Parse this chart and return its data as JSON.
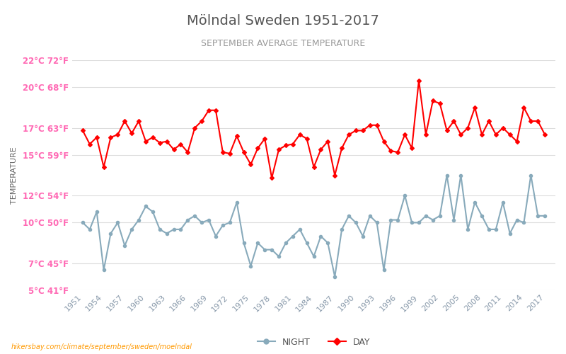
{
  "title": "Mölndal Sweden 1951-2017",
  "subtitle": "SEPTEMBER AVERAGE TEMPERATURE",
  "ylabel": "TEMPERATURE",
  "background_color": "#ffffff",
  "plot_bg_color": "#ffffff",
  "grid_color": "#dddddd",
  "title_color": "#555555",
  "subtitle_color": "#888888",
  "ylabel_color": "#666666",
  "tick_color_left": "#ff69b4",
  "tick_color_right": "#66cc66",
  "years": [
    1951,
    1952,
    1953,
    1954,
    1955,
    1956,
    1957,
    1958,
    1959,
    1960,
    1961,
    1962,
    1963,
    1964,
    1965,
    1966,
    1967,
    1968,
    1969,
    1970,
    1971,
    1972,
    1973,
    1974,
    1975,
    1976,
    1977,
    1978,
    1979,
    1980,
    1981,
    1982,
    1983,
    1984,
    1985,
    1986,
    1987,
    1988,
    1989,
    1990,
    1991,
    1992,
    1993,
    1994,
    1995,
    1996,
    1997,
    1998,
    1999,
    2000,
    2001,
    2002,
    2003,
    2004,
    2005,
    2006,
    2007,
    2008,
    2009,
    2010,
    2011,
    2012,
    2013,
    2014,
    2015,
    2016,
    2017
  ],
  "day_data": [
    16.8,
    15.8,
    16.3,
    14.1,
    16.3,
    16.5,
    17.5,
    16.6,
    17.5,
    16.0,
    16.3,
    15.9,
    16.0,
    15.4,
    15.8,
    15.2,
    17.0,
    17.5,
    18.3,
    18.3,
    15.2,
    15.1,
    16.4,
    15.2,
    14.3,
    15.5,
    16.2,
    13.3,
    15.4,
    15.7,
    15.8,
    16.5,
    16.2,
    14.1,
    15.4,
    16.0,
    13.5,
    15.5,
    16.5,
    16.8,
    16.8,
    17.2,
    17.2,
    16.0,
    15.3,
    15.2,
    16.5,
    15.5,
    20.5,
    16.5,
    19.0,
    18.8,
    16.8,
    17.5,
    16.5,
    17.0,
    18.5,
    16.5,
    17.5,
    16.5,
    17.0,
    16.5,
    16.0,
    18.5,
    17.5,
    17.5,
    16.5
  ],
  "night_data": [
    10.0,
    9.5,
    10.8,
    6.5,
    9.2,
    10.0,
    8.3,
    9.5,
    10.2,
    11.2,
    10.8,
    9.5,
    9.2,
    9.5,
    9.5,
    10.2,
    10.5,
    10.0,
    10.2,
    9.0,
    9.8,
    10.0,
    11.5,
    8.5,
    6.8,
    8.5,
    8.0,
    8.0,
    7.5,
    8.5,
    9.0,
    9.5,
    8.5,
    7.5,
    9.0,
    8.5,
    6.0,
    9.5,
    10.5,
    10.0,
    9.0,
    10.5,
    10.0,
    6.5,
    10.2,
    10.2,
    12.0,
    10.0,
    10.0,
    10.5,
    10.2,
    10.5,
    13.5,
    10.2,
    13.5,
    9.5,
    11.5,
    10.5,
    9.5,
    9.5,
    11.5,
    9.2,
    10.2,
    10.0,
    13.5,
    10.5,
    10.5
  ],
  "day_color": "#ff0000",
  "night_color": "#88aabb",
  "day_marker": "D",
  "night_marker": "o",
  "marker_size": 3,
  "line_width": 1.5,
  "ylim_celsius": [
    5,
    22
  ],
  "yticks_celsius": [
    5,
    7,
    10,
    12,
    15,
    17,
    20,
    22
  ],
  "yticks_fahrenheit": [
    41,
    45,
    50,
    54,
    59,
    63,
    68,
    72
  ],
  "xtick_years": [
    1951,
    1954,
    1957,
    1960,
    1963,
    1966,
    1969,
    1972,
    1975,
    1978,
    1981,
    1984,
    1987,
    1990,
    1993,
    1996,
    1999,
    2002,
    2005,
    2008,
    2011,
    2014,
    2017
  ],
  "legend_night": "NIGHT",
  "legend_day": "DAY",
  "watermark": "hikersbay.com/climate/september/sweden/moelndal"
}
